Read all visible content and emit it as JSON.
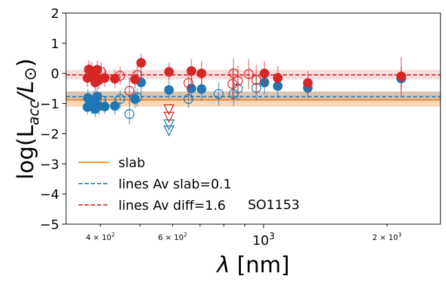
{
  "chart_data": {
    "type": "scatter",
    "object_label": "SO1153",
    "xlabel_html": "λ [nm]",
    "ylabel": "log(L_acc/L_⊙)",
    "xscale": "log",
    "xlim": [
      330,
      2700
    ],
    "ylim": [
      -5,
      2
    ],
    "yticks": [
      "−5",
      "−4",
      "−3",
      "−2",
      "−1",
      "0",
      "1",
      "2"
    ],
    "yticks_values": [
      -5,
      -4,
      -3,
      -2,
      -1,
      0,
      1,
      2
    ],
    "xticks": [
      {
        "value": 400,
        "base": "4 × 10",
        "exp": "2"
      },
      {
        "value": 600,
        "base": "6 × 10",
        "exp": "2"
      },
      {
        "value": 1000,
        "base": "10",
        "exp": "3"
      },
      {
        "value": 2000,
        "base": "2 × 10",
        "exp": "3"
      }
    ],
    "legend": [
      {
        "label": "slab",
        "style": "solid",
        "color": "#ff7f0e"
      },
      {
        "label": "lines Av slab=0.1",
        "style": "dashed",
        "color": "#1f77b4"
      },
      {
        "label": "lines Av diff=1.6",
        "style": "dashed",
        "color": "#d62728"
      }
    ],
    "reference_lines": [
      {
        "name": "slab",
        "y": -0.87,
        "band": [
          -1.1,
          -0.6
        ],
        "color": "#ff7f0e",
        "style": "solid",
        "band_color": "#f2a960"
      },
      {
        "name": "lines Av slab=0.1",
        "y": -0.77,
        "band": [
          -0.92,
          -0.6
        ],
        "color": "#1f77b4",
        "style": "dashed",
        "band_color": "#b0b0b0"
      },
      {
        "name": "lines Av diff=1.6",
        "y": -0.05,
        "band": [
          -0.2,
          0.12
        ],
        "color": "#d62728",
        "style": "dashed",
        "band_color": "#f4b3b3"
      }
    ],
    "series": [
      {
        "key": "blue_filled",
        "color": "#1f77b4",
        "filled": true,
        "points": [
          {
            "x": 372,
            "y": -1.12,
            "err": 0.25
          },
          {
            "x": 373,
            "y": -0.82,
            "err": 0.3
          },
          {
            "x": 381,
            "y": -1.1,
            "err": 0.25
          },
          {
            "x": 386,
            "y": -0.88,
            "err": 0.3
          },
          {
            "x": 389,
            "y": -1.18,
            "err": 0.28
          },
          {
            "x": 393,
            "y": -0.77,
            "err": 0.3
          },
          {
            "x": 397,
            "y": -1.08,
            "err": 0.3
          },
          {
            "x": 410,
            "y": -1.1,
            "err": 0.25
          },
          {
            "x": 434,
            "y": -1.08,
            "err": 0.3
          },
          {
            "x": 486,
            "y": -0.85,
            "err": 0.3
          },
          {
            "x": 503,
            "y": -0.3,
            "err": 0.4
          },
          {
            "x": 588,
            "y": -0.55,
            "err": 0.3
          },
          {
            "x": 667,
            "y": -0.5,
            "err": 0.4
          },
          {
            "x": 706,
            "y": -0.52,
            "err": 0.4
          },
          {
            "x": 1005,
            "y": -0.3,
            "err": 0.4
          },
          {
            "x": 1083,
            "y": -0.42,
            "err": 0.4
          },
          {
            "x": 1282,
            "y": -0.48,
            "err": 0.35
          },
          {
            "x": 2166,
            "y": -0.17,
            "err": 0.4
          }
        ]
      },
      {
        "key": "blue_open",
        "color": "#1f77b4",
        "filled": false,
        "points": [
          {
            "x": 383,
            "y": -1.05,
            "err": 0.3
          },
          {
            "x": 402,
            "y": -0.9,
            "err": 0.3
          },
          {
            "x": 447,
            "y": -0.85,
            "err": 0.3
          },
          {
            "x": 471,
            "y": -1.35,
            "err": 0.35
          },
          {
            "x": 492,
            "y": -0.8,
            "err": 0.3
          },
          {
            "x": 656,
            "y": -0.85,
            "err": 0.3
          },
          {
            "x": 777,
            "y": -0.68,
            "err": 0.4
          },
          {
            "x": 845,
            "y": -0.68,
            "err": 0.4
          },
          {
            "x": 866,
            "y": -0.5,
            "err": 0.4
          },
          {
            "x": 960,
            "y": -0.48,
            "err": 0.4
          }
        ]
      },
      {
        "key": "blue_upper_limits",
        "color": "#1f77b4",
        "filled": false,
        "marker": "triangle-down",
        "points": [
          {
            "x": 588,
            "y": -1.7,
            "err": 0
          },
          {
            "x": 588,
            "y": -1.9,
            "err": 0
          }
        ]
      },
      {
        "key": "red_filled",
        "color": "#d62728",
        "filled": true,
        "points": [
          {
            "x": 372,
            "y": -0.15,
            "err": 0.3
          },
          {
            "x": 375,
            "y": 0.13,
            "err": 0.3
          },
          {
            "x": 381,
            "y": 0.08,
            "err": 0.3
          },
          {
            "x": 386,
            "y": -0.18,
            "err": 0.3
          },
          {
            "x": 389,
            "y": -0.3,
            "err": 0.3
          },
          {
            "x": 393,
            "y": 0.12,
            "err": 0.3
          },
          {
            "x": 397,
            "y": -0.22,
            "err": 0.3
          },
          {
            "x": 410,
            "y": -0.15,
            "err": 0.3
          },
          {
            "x": 434,
            "y": -0.18,
            "err": 0.3
          },
          {
            "x": 486,
            "y": -0.2,
            "err": 0.3
          },
          {
            "x": 503,
            "y": 0.35,
            "err": 0.3
          },
          {
            "x": 588,
            "y": 0.05,
            "err": 0.3
          },
          {
            "x": 667,
            "y": 0.08,
            "err": 0.4
          },
          {
            "x": 706,
            "y": 0.0,
            "err": 0.4
          },
          {
            "x": 1005,
            "y": 0.0,
            "err": 0.4
          },
          {
            "x": 1083,
            "y": -0.15,
            "err": 0.4
          },
          {
            "x": 1282,
            "y": -0.32,
            "err": 0.4
          },
          {
            "x": 2166,
            "y": -0.1,
            "err": 0.65
          }
        ]
      },
      {
        "key": "red_open",
        "color": "#d62728",
        "filled": false,
        "points": [
          {
            "x": 383,
            "y": -0.12,
            "err": 0.3
          },
          {
            "x": 402,
            "y": 0.05,
            "err": 0.3
          },
          {
            "x": 447,
            "y": -0.08,
            "err": 0.3
          },
          {
            "x": 471,
            "y": -0.58,
            "err": 0.45
          },
          {
            "x": 492,
            "y": -0.05,
            "err": 0.3
          },
          {
            "x": 656,
            "y": -0.32,
            "err": 0.4
          },
          {
            "x": 845,
            "y": 0.0,
            "err": 0.5
          },
          {
            "x": 866,
            "y": -0.25,
            "err": 0.5
          },
          {
            "x": 920,
            "y": -0.02,
            "err": 0.5
          },
          {
            "x": 960,
            "y": -0.22,
            "err": 0.5
          },
          {
            "x": 840,
            "y": -0.35,
            "err": 0.5
          }
        ]
      },
      {
        "key": "red_upper_limits",
        "color": "#d62728",
        "filled": false,
        "marker": "triangle-down",
        "points": [
          {
            "x": 588,
            "y": -1.2,
            "err": 0
          },
          {
            "x": 588,
            "y": -1.45,
            "err": 0
          }
        ]
      }
    ]
  }
}
